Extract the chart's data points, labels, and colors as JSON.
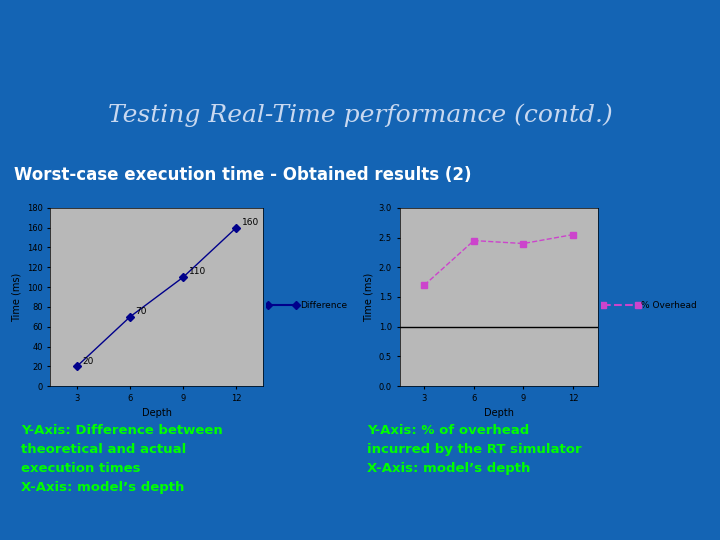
{
  "title": "Testing Real-Time performance (contd.)",
  "subtitle": "Worst-case execution time - Obtained results (2)",
  "slide_bg_color": "#1464b4",
  "title_area_top_color": "#1464b4",
  "title_area_bot_color": "#001040",
  "accent_bar_color": "#29a0d8",
  "chart1": {
    "x": [
      3,
      6,
      9,
      12
    ],
    "y": [
      20,
      70,
      110,
      160
    ],
    "labels": [
      "20",
      "70",
      "110",
      "160"
    ],
    "xlabel": "Depth",
    "ylabel": "Time (ms)",
    "yticks": [
      0,
      20,
      40,
      60,
      80,
      100,
      120,
      140,
      160,
      180
    ],
    "ylim": [
      0,
      180
    ],
    "xticks": [
      3,
      6,
      9,
      12
    ],
    "legend_label": "Difference",
    "line_color": "#00008b",
    "marker": "D",
    "marker_color": "#00008b",
    "plot_bg_color": "#b8b8b8"
  },
  "chart2": {
    "x": [
      3,
      6,
      9,
      12
    ],
    "y": [
      1.7,
      2.45,
      2.4,
      2.55
    ],
    "xlabel": "Depth",
    "ylabel": "Time (ms)",
    "yticks": [
      0,
      0.5,
      1.0,
      1.5,
      2.0,
      2.5,
      3.0
    ],
    "ylim": [
      0,
      3.0
    ],
    "xticks": [
      3,
      6,
      9,
      12
    ],
    "hline_y": 1.0,
    "legend_label": "% Overhead",
    "line_color": "#cc44cc",
    "marker": "s",
    "marker_color": "#cc44cc",
    "plot_bg_color": "#b8b8b8"
  },
  "caption1_lines": [
    "Y-Axis: Difference between",
    "theoretical and actual",
    "execution times",
    "X-Axis: model’s depth"
  ],
  "caption2_lines": [
    "Y-Axis: % of overhead",
    "incurred by the RT simulator",
    "X-Axis: model’s depth"
  ],
  "caption_color": "#00ff00",
  "red_bar_color": "#cc0000",
  "white_panel_color": "#ffffff"
}
